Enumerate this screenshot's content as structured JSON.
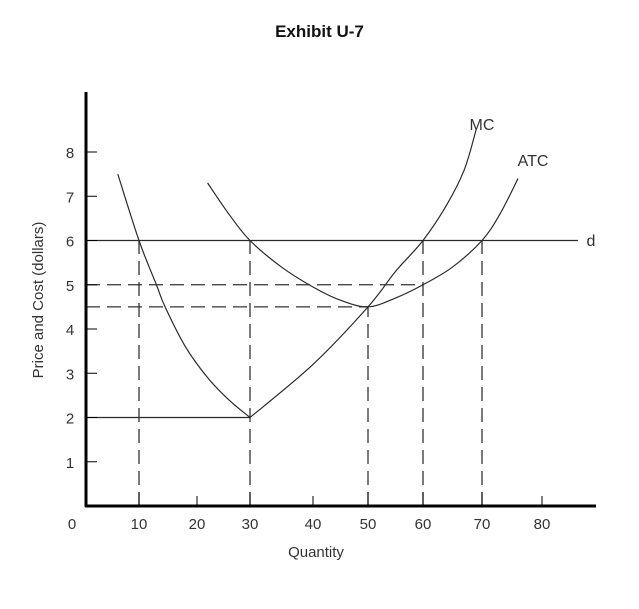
{
  "chart_data": {
    "type": "line",
    "title": "Exhibit U-7",
    "xlabel": "Quantity",
    "ylabel": "Price and Cost (dollars)",
    "xlim": [
      0,
      85
    ],
    "ylim": [
      0,
      9
    ],
    "x_ticks": [
      0,
      10,
      20,
      30,
      40,
      50,
      60,
      70,
      80
    ],
    "y_ticks": [
      1,
      2,
      3,
      4,
      5,
      6,
      7,
      8
    ],
    "grid": false,
    "series": [
      {
        "name": "MC",
        "label": "MC",
        "points": [
          [
            6,
            7.5
          ],
          [
            10,
            6.0
          ],
          [
            13,
            5.0
          ],
          [
            14.5,
            4.5
          ],
          [
            18,
            3.6
          ],
          [
            22,
            2.9
          ],
          [
            26,
            2.4
          ],
          [
            30,
            2.0
          ],
          [
            40,
            3.2
          ],
          [
            50,
            4.5
          ],
          [
            55,
            5.3
          ],
          [
            60,
            6.0
          ],
          [
            64,
            6.8
          ],
          [
            67,
            7.6
          ],
          [
            69,
            8.5
          ]
        ]
      },
      {
        "name": "ATC",
        "label": "ATC",
        "points": [
          [
            22,
            7.3
          ],
          [
            26,
            6.6
          ],
          [
            30,
            6.0
          ],
          [
            35,
            5.4
          ],
          [
            40,
            4.95
          ],
          [
            45,
            4.65
          ],
          [
            50,
            4.5
          ],
          [
            55,
            4.7
          ],
          [
            60,
            5.0
          ],
          [
            65,
            5.4
          ],
          [
            70,
            6.0
          ],
          [
            73,
            6.6
          ],
          [
            76,
            7.4
          ]
        ]
      },
      {
        "name": "d",
        "label": "d",
        "points": [
          [
            0,
            6
          ],
          [
            87,
            6
          ]
        ]
      }
    ],
    "reference_lines": {
      "solid_horizontal": [
        {
          "y": 2,
          "x_from": 0,
          "x_to": 30
        }
      ],
      "dashed_horizontal": [
        {
          "y": 5,
          "x_from": 0,
          "x_to": 60
        },
        {
          "y": 4.5,
          "x_from": 0,
          "x_to": 50
        }
      ],
      "dashed_vertical": [
        {
          "x": 10,
          "y_from": 0,
          "y_to": 6
        },
        {
          "x": 30,
          "y_from": 0,
          "y_to": 6
        },
        {
          "x": 50,
          "y_from": 0,
          "y_to": 4.5
        },
        {
          "x": 60,
          "y_from": 0,
          "y_to": 6
        },
        {
          "x": 70,
          "y_from": 0,
          "y_to": 6
        }
      ]
    },
    "annotations": [
      {
        "text": "MC",
        "x": 67,
        "y": 8.9
      },
      {
        "text": "ATC",
        "x": 75,
        "y": 7.9
      },
      {
        "text": "d",
        "x": 89,
        "y": 6
      }
    ]
  },
  "colors": {
    "axis": "#000000",
    "curve": "#2a2a2a",
    "dashed": "#333333",
    "text": "#333333"
  }
}
